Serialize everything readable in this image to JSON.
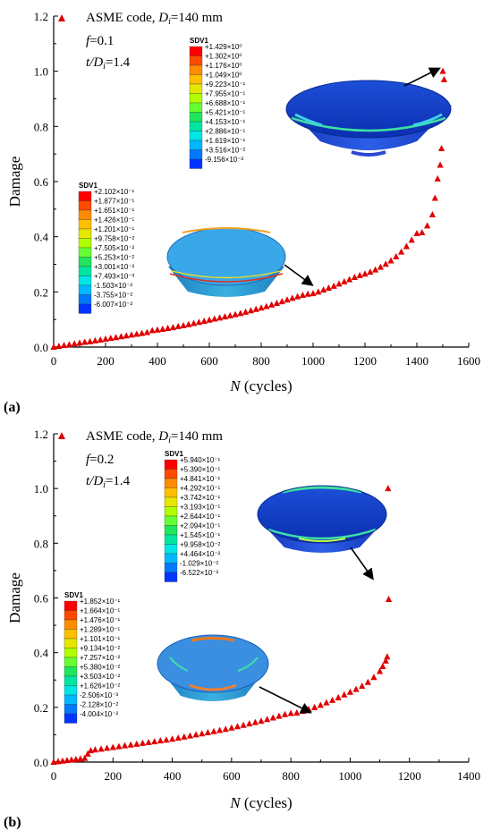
{
  "chart_data": [
    {
      "type": "scatter",
      "panel_label": "(a)",
      "xlabel_var": "N",
      "xlabel_unit": " (cycles)",
      "ylabel": "Damage",
      "xlim": [
        0,
        1600
      ],
      "ylim": [
        0,
        1.2
      ],
      "xticks": [
        0,
        200,
        400,
        600,
        800,
        1000,
        1200,
        1400,
        1600
      ],
      "yticks": [
        0.0,
        0.2,
        0.4,
        0.6,
        0.8,
        1.0,
        1.2
      ],
      "xtick_labels": [
        "0",
        "200",
        "400",
        "600",
        "800",
        "1000",
        "1200",
        "1400",
        "1600"
      ],
      "ytick_labels": [
        "0.0",
        "0.2",
        "0.4",
        "0.6",
        "0.8",
        "1.0",
        "1.2"
      ],
      "legend": {
        "label_prefix": "ASME code, ",
        "label_var": "D",
        "label_sub": "i",
        "label_suffix": "=140 mm"
      },
      "param_f": {
        "var": "f",
        "value": "=0.1"
      },
      "param_t": {
        "var": "t/D",
        "sub": "i",
        "value": "=1.4"
      },
      "series": [
        {
          "points": [
            [
              0,
              0.0
            ],
            [
              20,
              0.003
            ],
            [
              40,
              0.006
            ],
            [
              60,
              0.009
            ],
            [
              80,
              0.012
            ],
            [
              100,
              0.015
            ],
            [
              120,
              0.018
            ],
            [
              140,
              0.02
            ],
            [
              160,
              0.023
            ],
            [
              180,
              0.026
            ],
            [
              200,
              0.029
            ],
            [
              220,
              0.032
            ],
            [
              240,
              0.035
            ],
            [
              260,
              0.038
            ],
            [
              280,
              0.041
            ],
            [
              300,
              0.044
            ],
            [
              320,
              0.047
            ],
            [
              340,
              0.05
            ],
            [
              360,
              0.053
            ],
            [
              380,
              0.06
            ],
            [
              400,
              0.062
            ],
            [
              420,
              0.065
            ],
            [
              440,
              0.068
            ],
            [
              460,
              0.071
            ],
            [
              480,
              0.075
            ],
            [
              500,
              0.078
            ],
            [
              520,
              0.082
            ],
            [
              540,
              0.086
            ],
            [
              560,
              0.09
            ],
            [
              580,
              0.094
            ],
            [
              600,
              0.098
            ],
            [
              620,
              0.102
            ],
            [
              640,
              0.106
            ],
            [
              660,
              0.11
            ],
            [
              680,
              0.114
            ],
            [
              700,
              0.118
            ],
            [
              720,
              0.122
            ],
            [
              740,
              0.127
            ],
            [
              760,
              0.132
            ],
            [
              780,
              0.137
            ],
            [
              800,
              0.142
            ],
            [
              820,
              0.147
            ],
            [
              840,
              0.153
            ],
            [
              860,
              0.159
            ],
            [
              880,
              0.165
            ],
            [
              900,
              0.171
            ],
            [
              920,
              0.177
            ],
            [
              940,
              0.183
            ],
            [
              960,
              0.188
            ],
            [
              980,
              0.192
            ],
            [
              1000,
              0.194
            ],
            [
              1020,
              0.2
            ],
            [
              1040,
              0.207
            ],
            [
              1060,
              0.214
            ],
            [
              1080,
              0.221
            ],
            [
              1100,
              0.229
            ],
            [
              1120,
              0.237
            ],
            [
              1140,
              0.245
            ],
            [
              1160,
              0.253
            ],
            [
              1180,
              0.26
            ],
            [
              1200,
              0.265
            ],
            [
              1220,
              0.272
            ],
            [
              1240,
              0.28
            ],
            [
              1260,
              0.29
            ],
            [
              1280,
              0.301
            ],
            [
              1300,
              0.313
            ],
            [
              1320,
              0.328
            ],
            [
              1340,
              0.345
            ],
            [
              1360,
              0.365
            ],
            [
              1380,
              0.388
            ],
            [
              1400,
              0.412
            ],
            [
              1420,
              0.415
            ],
            [
              1440,
              0.44
            ],
            [
              1460,
              0.48
            ],
            [
              1470,
              0.54
            ],
            [
              1480,
              0.61
            ],
            [
              1490,
              0.66
            ],
            [
              1495,
              0.72
            ],
            [
              1500,
              1.0
            ],
            [
              1505,
              0.97
            ]
          ]
        }
      ],
      "colorbars": [
        {
          "title": "SDV1",
          "colors": [
            "#ff0000",
            "#ff4a00",
            "#ff8c00",
            "#ffbf00",
            "#e6e600",
            "#b0ff00",
            "#66ff33",
            "#1fe65c",
            "#00e6a0",
            "#00e6e6",
            "#00b8ff",
            "#0078ff",
            "#0034ff"
          ],
          "labels": [
            "+1.429×10⁰",
            "+1.302×10⁰",
            "+1.176×10⁰",
            "+1.049×10⁰",
            "+9.223×10⁻¹",
            "+7.955×10⁻¹",
            "+6.688×10⁻¹",
            "+5.421×10⁻¹",
            "+4.153×10⁻¹",
            "+2.886×10⁻¹",
            "+1.619×10⁻¹",
            "+3.516×10⁻²",
            "-9.156×10⁻²"
          ]
        },
        {
          "title": "SDV1",
          "colors": [
            "#ff0000",
            "#ff4a00",
            "#ff8c00",
            "#ffbf00",
            "#e6e600",
            "#b0ff00",
            "#66ff33",
            "#1fe65c",
            "#00e6a0",
            "#00e6e6",
            "#00b8ff",
            "#0078ff",
            "#0034ff"
          ],
          "labels": [
            "+2.102×10⁻¹",
            "+1.877×10⁻¹",
            "+1.651×10⁻¹",
            "+1.426×10⁻¹",
            "+1.201×10⁻¹",
            "+9.758×10⁻²",
            "+7.505×10⁻²",
            "+5.253×10⁻²",
            "+3.001×10⁻²",
            "+7.493×10⁻³",
            "-1.503×10⁻²",
            "-3.755×10⁻²",
            "-6.007×10⁻²"
          ]
        }
      ]
    },
    {
      "type": "scatter",
      "panel_label": "(b)",
      "xlabel_var": "N",
      "xlabel_unit": " (cycles)",
      "ylabel": "Damage",
      "xlim": [
        0,
        1400
      ],
      "ylim": [
        0,
        1.2
      ],
      "xticks": [
        0,
        200,
        400,
        600,
        800,
        1000,
        1200,
        1400
      ],
      "yticks": [
        0.0,
        0.2,
        0.4,
        0.6,
        0.8,
        1.0,
        1.2
      ],
      "xtick_labels": [
        "0",
        "200",
        "400",
        "600",
        "800",
        "1000",
        "1200",
        "1400"
      ],
      "ytick_labels": [
        "0.0",
        "0.2",
        "0.4",
        "0.6",
        "0.8",
        "1.0",
        "1.2"
      ],
      "legend": {
        "label_prefix": "ASME code, ",
        "label_var": "D",
        "label_sub": "i",
        "label_suffix": "=140 mm"
      },
      "param_f": {
        "var": "f",
        "value": "=0.2"
      },
      "param_t": {
        "var": "t/D",
        "sub": "i",
        "value": "=1.4"
      },
      "series": [
        {
          "points": [
            [
              0,
              0.0
            ],
            [
              15,
              0.002
            ],
            [
              30,
              0.004
            ],
            [
              45,
              0.006
            ],
            [
              60,
              0.008
            ],
            [
              75,
              0.01
            ],
            [
              90,
              0.012
            ],
            [
              105,
              0.014
            ],
            [
              115,
              0.03
            ],
            [
              125,
              0.042
            ],
            [
              140,
              0.045
            ],
            [
              160,
              0.048
            ],
            [
              180,
              0.051
            ],
            [
              200,
              0.054
            ],
            [
              220,
              0.057
            ],
            [
              240,
              0.06
            ],
            [
              260,
              0.063
            ],
            [
              280,
              0.066
            ],
            [
              300,
              0.069
            ],
            [
              320,
              0.072
            ],
            [
              340,
              0.075
            ],
            [
              360,
              0.078
            ],
            [
              380,
              0.081
            ],
            [
              400,
              0.084
            ],
            [
              420,
              0.088
            ],
            [
              440,
              0.092
            ],
            [
              460,
              0.096
            ],
            [
              480,
              0.1
            ],
            [
              500,
              0.104
            ],
            [
              520,
              0.108
            ],
            [
              540,
              0.112
            ],
            [
              560,
              0.116
            ],
            [
              580,
              0.12
            ],
            [
              600,
              0.125
            ],
            [
              620,
              0.13
            ],
            [
              640,
              0.135
            ],
            [
              660,
              0.14
            ],
            [
              680,
              0.145
            ],
            [
              700,
              0.15
            ],
            [
              720,
              0.156
            ],
            [
              740,
              0.162
            ],
            [
              760,
              0.168
            ],
            [
              780,
              0.174
            ],
            [
              800,
              0.178
            ],
            [
              820,
              0.18
            ],
            [
              840,
              0.186
            ],
            [
              860,
              0.193
            ],
            [
              880,
              0.2
            ],
            [
              900,
              0.208
            ],
            [
              920,
              0.217
            ],
            [
              940,
              0.226
            ],
            [
              960,
              0.236
            ],
            [
              980,
              0.246
            ],
            [
              1000,
              0.256
            ],
            [
              1020,
              0.266
            ],
            [
              1040,
              0.278
            ],
            [
              1060,
              0.292
            ],
            [
              1080,
              0.31
            ],
            [
              1100,
              0.332
            ],
            [
              1110,
              0.35
            ],
            [
              1120,
              0.37
            ],
            [
              1125,
              0.385
            ],
            [
              1128,
              1.0
            ],
            [
              1130,
              0.595
            ]
          ]
        }
      ],
      "colorbars": [
        {
          "title": "SDV1",
          "colors": [
            "#ff0000",
            "#ff4a00",
            "#ff8c00",
            "#ffbf00",
            "#e6e600",
            "#b0ff00",
            "#66ff33",
            "#1fe65c",
            "#00e6a0",
            "#00e6e6",
            "#00b8ff",
            "#0078ff",
            "#0034ff"
          ],
          "labels": [
            "+5.940×10⁻¹",
            "+5.390×10⁻¹",
            "+4.841×10⁻¹",
            "+4.292×10⁻¹",
            "+3.742×10⁻¹",
            "+3.193×10⁻¹",
            "+2.644×10⁻¹",
            "+2.094×10⁻¹",
            "+1.545×10⁻¹",
            "+9.958×10⁻²",
            "+4.464×10⁻²",
            "-1.029×10⁻²",
            "-6.522×10⁻²"
          ]
        },
        {
          "title": "SDV1",
          "colors": [
            "#ff0000",
            "#ff4a00",
            "#ff8c00",
            "#ffbf00",
            "#e6e600",
            "#b0ff00",
            "#66ff33",
            "#1fe65c",
            "#00e6a0",
            "#00e6e6",
            "#00b8ff",
            "#0078ff",
            "#0034ff"
          ],
          "labels": [
            "+1.852×10⁻¹",
            "+1.664×10⁻¹",
            "+1.476×10⁻¹",
            "+1.289×10⁻¹",
            "+1.101×10⁻¹",
            "+9.134×10⁻²",
            "+7.257×10⁻²",
            "+5.380×10⁻²",
            "+3.503×10⁻²",
            "+1.626×10⁻²",
            "-2.506×10⁻³",
            "-2.128×10⁻²",
            "-4.004×10⁻²"
          ]
        }
      ]
    }
  ]
}
